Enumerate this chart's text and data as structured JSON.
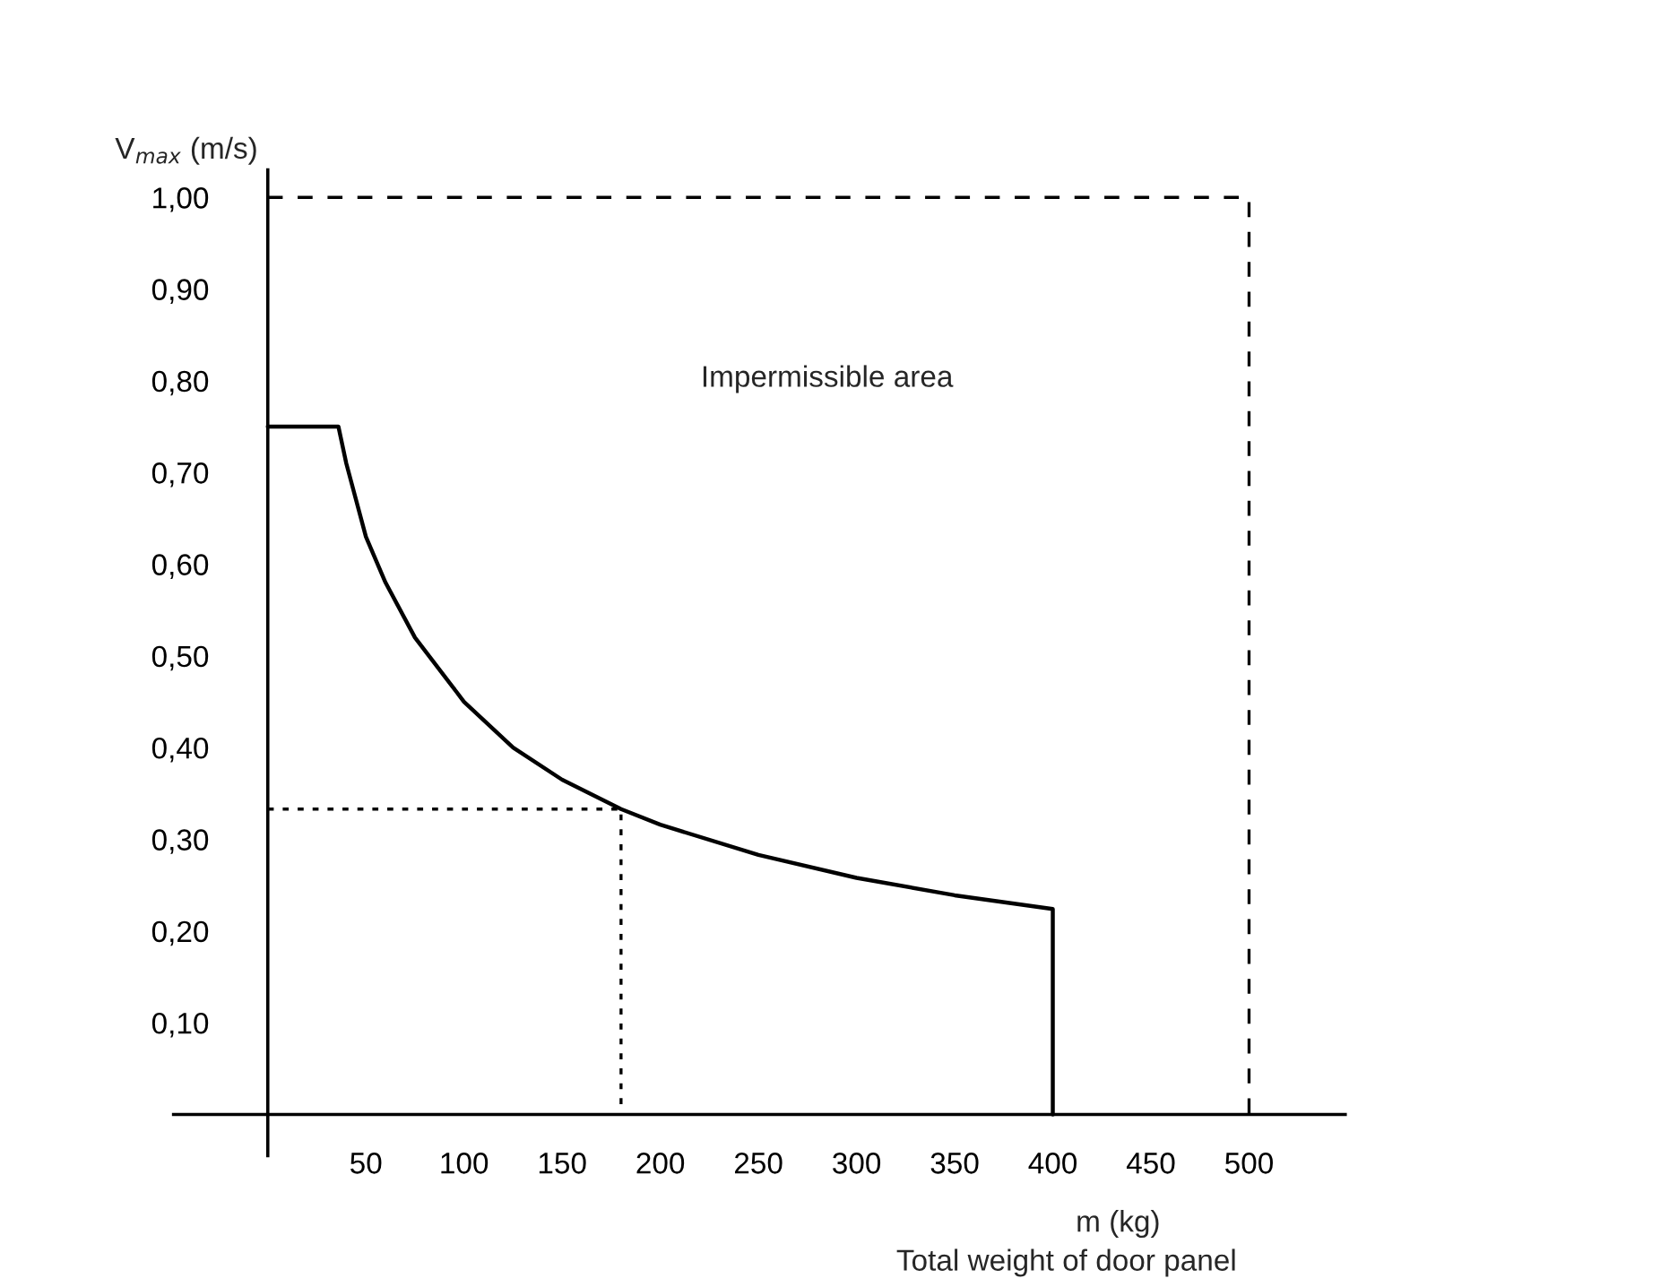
{
  "chart_data": {
    "type": "line",
    "ylabel": "V$_{max}$ (m/s)",
    "xlabel": "m (kg)",
    "annotations": [
      "Impermissible area",
      "Total weight of door panel"
    ],
    "series": [
      {
        "color": "#000000",
        "line_style": "solid",
        "x": [
          0,
          36,
          40,
          50,
          60,
          75,
          100,
          125,
          150,
          180,
          200,
          250,
          300,
          350,
          400,
          400
        ],
        "values": [
          0.75,
          0.75,
          0.71,
          0.63,
          0.58,
          0.52,
          0.45,
          0.4,
          0.365,
          0.333,
          0.316,
          0.283,
          0.258,
          0.239,
          0.224,
          0
        ]
      },
      {
        "color": "#000000",
        "line_style": "dashed",
        "x": [
          0,
          500,
          500
        ],
        "values": [
          1.0,
          1.0,
          0
        ]
      },
      {
        "color": "#000000",
        "line_style": "dotted",
        "x": [
          0,
          180,
          180
        ],
        "values": [
          0.333,
          0.333,
          0
        ]
      }
    ],
    "xlim": [
      -48,
      549
    ],
    "ylim": [
      -0.045,
      1.03
    ],
    "xticks": [
      50,
      100,
      150,
      200,
      250,
      300,
      350,
      400,
      450,
      500
    ],
    "yticks": [
      {
        "value": 0.1,
        "label": "0,10"
      },
      {
        "value": 0.2,
        "label": "0,20"
      },
      {
        "value": 0.3,
        "label": "0,30"
      },
      {
        "value": 0.4,
        "label": "0,40"
      },
      {
        "value": 0.5,
        "label": "0,50"
      },
      {
        "value": 0.6,
        "label": "0,60"
      },
      {
        "value": 0.7,
        "label": "0,70"
      },
      {
        "value": 0.8,
        "label": "0,80"
      },
      {
        "value": 0.9,
        "label": "0,90"
      },
      {
        "value": 1.0,
        "label": "1,00"
      }
    ],
    "grid": false,
    "legend": false,
    "marker": "none"
  }
}
